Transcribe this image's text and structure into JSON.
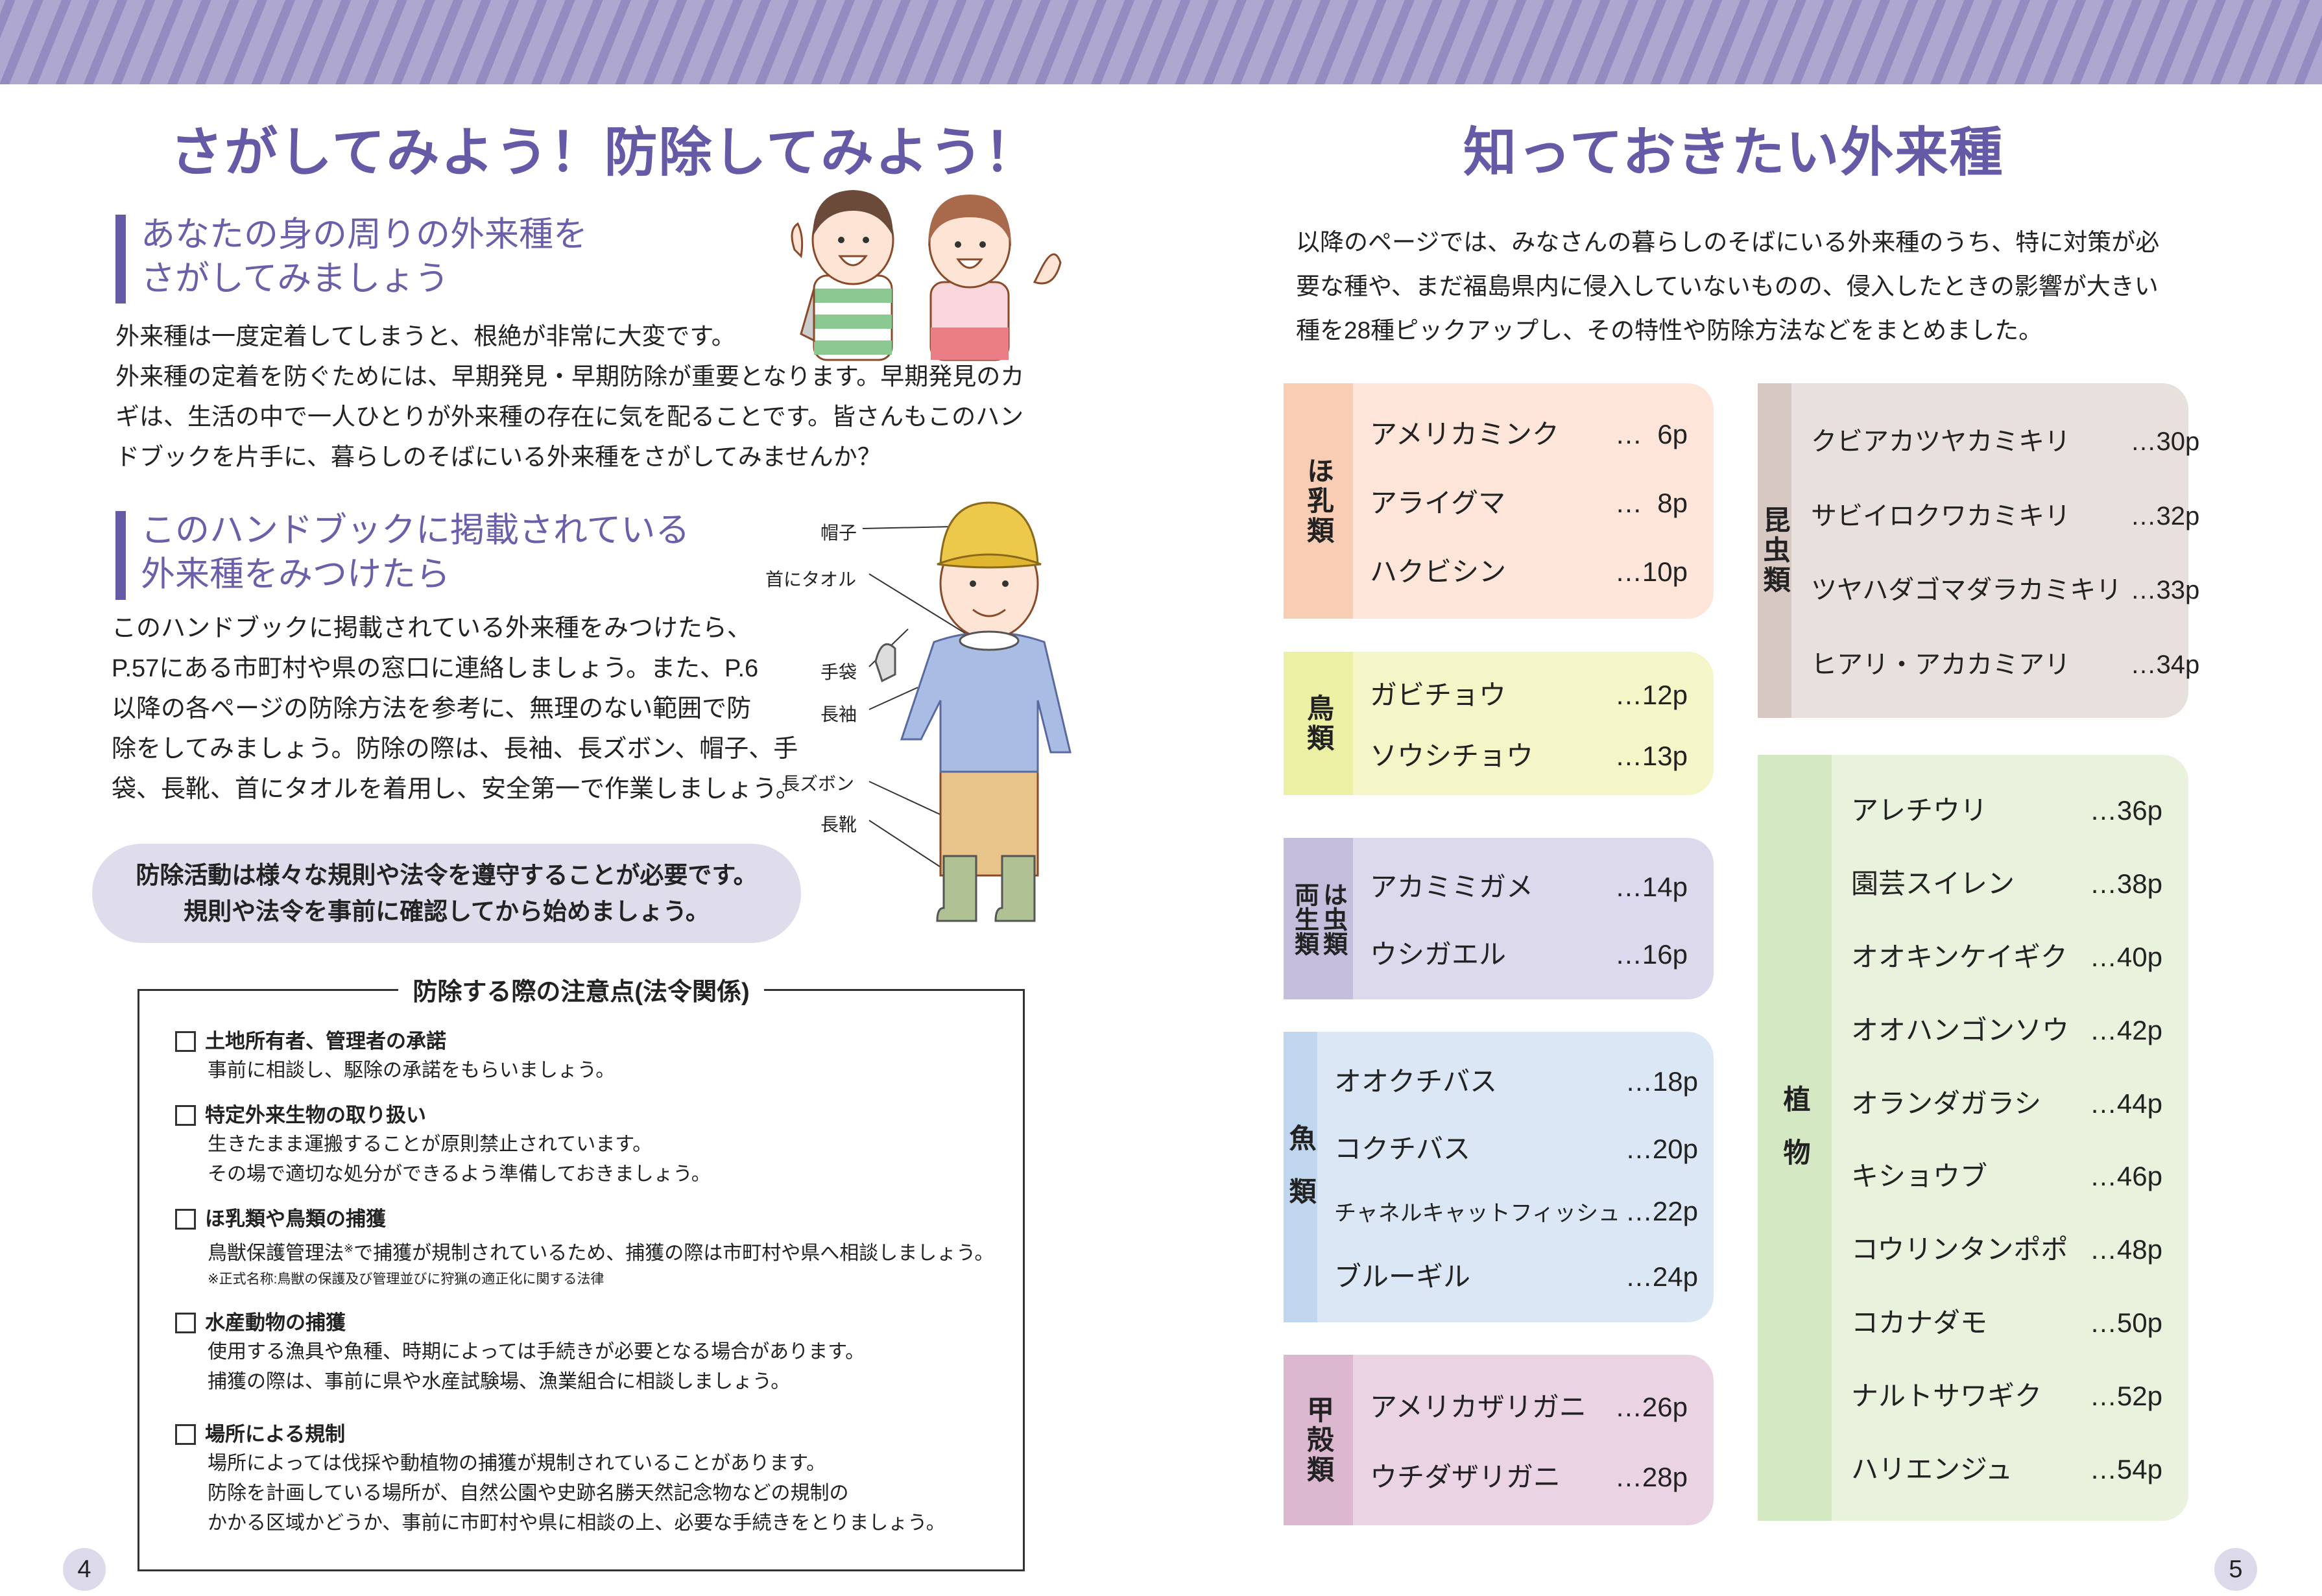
{
  "left_page": {
    "title": "さがしてみよう！防除してみよう！",
    "section1": {
      "heading": [
        "あなたの身の周りの外来種を",
        "さがしてみましょう"
      ],
      "body": [
        "外来種は一度定着してしまうと、根絶が非常に大変です。",
        "外来種の定着を防ぐためには、早期発見・早期防除が重要となります。早期発見のカ",
        "ギは、生活の中で一人ひとりが外来種の存在に気を配ることです。皆さんもこのハン",
        "ドブックを片手に、暮らしのそばにいる外来種をさがしてみませんか？"
      ]
    },
    "section2": {
      "heading": [
        "このハンドブックに掲載されている",
        "外来種をみつけたら"
      ],
      "body": [
        "このハンドブックに掲載されている外来種をみつけたら、",
        "P.57にある市町村や県の窓口に連絡しましょう。また、P.6",
        "以降の各ページの防除方法を参考に、無理のない範囲で防",
        "除をしてみましょう。防除の際は、長袖、長ズボン、帽子、手",
        "袋、長靴、首にタオルを着用し、安全第一で作業しましょう。"
      ],
      "gear_labels": {
        "hat": "帽子",
        "towel": "首にタオル",
        "gloves": "手袋",
        "sleeves": "長袖",
        "pants": "長ズボン",
        "boots": "長靴"
      }
    },
    "notice": [
      "防除活動は様々な規則や法令を遵守することが必要です。",
      "規則や法令を事前に確認してから始めましょう。"
    ],
    "legal": {
      "title": "防除する際の注意点(法令関係)",
      "items": [
        {
          "title": "土地所有者、管理者の承諾",
          "lines": [
            "事前に相談し、駆除の承諾をもらいましょう。"
          ]
        },
        {
          "title": "特定外来生物の取り扱い",
          "lines": [
            "生きたまま運搬することが原則禁止されています。",
            "その場で適切な処分ができるよう準備しておきましょう。"
          ]
        },
        {
          "title": "ほ乳類や鳥類の捕獲",
          "line_a": "鳥獣保護管理法",
          "mark": "※",
          "line_b": "で捕獲が規制されているため、捕獲の際は市町村や県へ相談しましょう。",
          "footnote": "※正式名称:鳥獣の保護及び管理並びに狩猟の適正化に関する法律"
        },
        {
          "title": "水産動物の捕獲",
          "lines": [
            "使用する漁具や魚種、時期によっては手続きが必要となる場合があります。",
            "捕獲の際は、事前に県や水産試験場、漁業組合に相談しましょう。"
          ]
        },
        {
          "title": "場所による規制",
          "lines": [
            "場所によっては伐採や動植物の捕獲が規制されていることがあります。",
            "防除を計画している場所が、自然公園や史跡名勝天然記念物などの規制の",
            "かかる区域かどうか、事前に市町村や県に相談の上、必要な手続きをとりましょう。"
          ]
        }
      ]
    },
    "page_number": "4"
  },
  "right_page": {
    "title": "知っておきたい外来種",
    "intro": [
      "以降のページでは、みなさんの暮らしのそばにいる外来種のうち、特に対策が必",
      "要な種や、まだ福島県内に侵入していないものの、侵入したときの影響が大きい",
      "種を28種ピックアップし、その特性や防除方法などをまとめました。"
    ],
    "groups": {
      "mammals": {
        "label": "ほ乳類",
        "color": "#f8cdb4",
        "bg": "#fde6d9",
        "items": [
          {
            "name": "アメリカミンク",
            "page": "…  6p"
          },
          {
            "name": "アライグマ",
            "page": "…  8p"
          },
          {
            "name": "ハクビシン",
            "page": "…10p"
          }
        ]
      },
      "birds": {
        "label": "鳥類",
        "color": "#ecf0a4",
        "bg": "#f4f6c8",
        "items": [
          {
            "name": "ガビチョウ",
            "page": "…12p"
          },
          {
            "name": "ソウシチョウ",
            "page": "…13p"
          }
        ]
      },
      "amphibians": {
        "label_1": "両生類",
        "label_2": "は虫類",
        "color": "#c4bedc",
        "bg": "#ddd9ec",
        "items": [
          {
            "name": "アカミミガメ",
            "page": "…14p"
          },
          {
            "name": "ウシガエル",
            "page": "…16p"
          }
        ]
      },
      "fish": {
        "label": "魚類",
        "color": "#c0d6ee",
        "bg": "#dbe7f5",
        "items": [
          {
            "name": "オオクチバス",
            "page": "…18p"
          },
          {
            "name": "コクチバス",
            "page": "…20p"
          },
          {
            "name": "チャネルキャットフィッシュ",
            "page": "…22p"
          },
          {
            "name": "ブルーギル",
            "page": "…24p"
          }
        ]
      },
      "crustaceans": {
        "label": "甲殻類",
        "color": "#dcb8d0",
        "bg": "#ead4e4",
        "items": [
          {
            "name": "アメリカザリガニ",
            "page": "…26p"
          },
          {
            "name": "ウチダザリガニ",
            "page": "…28p"
          }
        ]
      },
      "insects": {
        "label": "昆虫類",
        "color": "#d8c8c4",
        "bg": "#e8e0dc",
        "items": [
          {
            "name": "クビアカツヤカミキリ",
            "page": "…30p"
          },
          {
            "name": "サビイロクワカミキリ",
            "page": "…32p"
          },
          {
            "name": "ツヤハダゴマダラカミキリ",
            "page": "…33p"
          },
          {
            "name": "ヒアリ・アカカミアリ",
            "page": "…34p"
          }
        ]
      },
      "plants": {
        "label": "植物",
        "color": "#d4e8c4",
        "bg": "#e8f2dc",
        "items": [
          {
            "name": "アレチウリ",
            "page": "…36p"
          },
          {
            "name": "園芸スイレン",
            "page": "…38p"
          },
          {
            "name": "オオキンケイギク",
            "page": "…40p"
          },
          {
            "name": "オオハンゴンソウ",
            "page": "…42p"
          },
          {
            "name": "オランダガラシ",
            "page": "…44p"
          },
          {
            "name": "キショウブ",
            "page": "…46p"
          },
          {
            "name": "コウリンタンポポ",
            "page": "…48p"
          },
          {
            "name": "コカナダモ",
            "page": "…50p"
          },
          {
            "name": "ナルトサワギク",
            "page": "…52p"
          },
          {
            "name": "ハリエンジュ",
            "page": "…54p"
          }
        ]
      }
    },
    "page_number": "5"
  },
  "colors": {
    "accent": "#655aa6",
    "stripe_light": "#aea8d0",
    "stripe_dark": "#948cc0",
    "notice_bg": "#dfdcec"
  }
}
